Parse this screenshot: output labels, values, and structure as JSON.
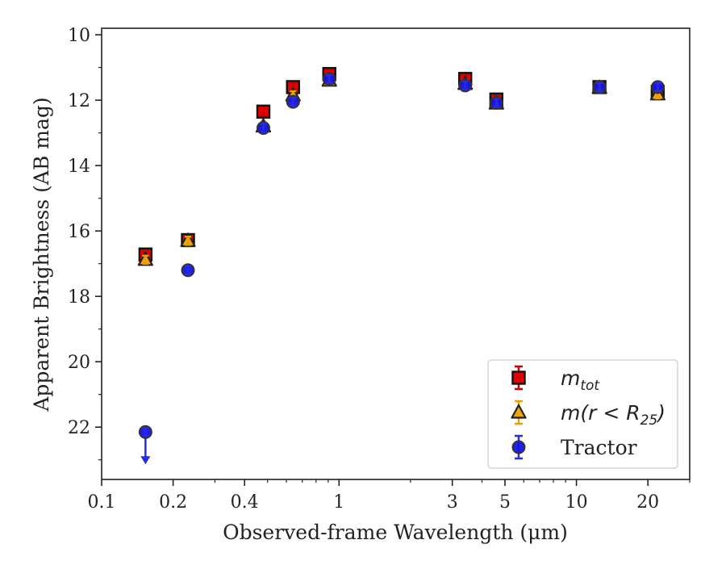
{
  "chart_data": {
    "type": "scatter",
    "title": "",
    "xlabel": "Observed-frame Wavelength (μm)",
    "ylabel": "Apparent Brightness (AB mag)",
    "x_scale": "log",
    "xlim": [
      0.1,
      30
    ],
    "ylim": [
      23.6,
      9.8
    ],
    "y_inverted": true,
    "x_ticks": [
      {
        "value": 0.1,
        "label": "0.1"
      },
      {
        "value": 0.2,
        "label": "0.2"
      },
      {
        "value": 0.4,
        "label": "0.4"
      },
      {
        "value": 1,
        "label": "1"
      },
      {
        "value": 3,
        "label": "3"
      },
      {
        "value": 5,
        "label": "5"
      },
      {
        "value": 10,
        "label": "10"
      },
      {
        "value": 20,
        "label": "20"
      }
    ],
    "y_ticks": [
      {
        "value": 10,
        "label": "10"
      },
      {
        "value": 12,
        "label": "12"
      },
      {
        "value": 14,
        "label": "14"
      },
      {
        "value": 16,
        "label": "16"
      },
      {
        "value": 18,
        "label": "18"
      },
      {
        "value": 20,
        "label": "20"
      },
      {
        "value": 22,
        "label": "22"
      }
    ],
    "grid": false,
    "legend_position": "lower-right",
    "series": [
      {
        "name": "m_tot",
        "label_base": "m",
        "label_sub": "tot",
        "marker": "square",
        "color": "#e60000",
        "errcolor": "#cc0000",
        "points": [
          {
            "x": 0.153,
            "y": 16.72
          },
          {
            "x": 0.231,
            "y": 16.28
          },
          {
            "x": 0.48,
            "y": 12.35
          },
          {
            "x": 0.64,
            "y": 11.6
          },
          {
            "x": 0.91,
            "y": 11.2
          },
          {
            "x": 3.4,
            "y": 11.35
          },
          {
            "x": 4.6,
            "y": 11.98
          },
          {
            "x": 12.5,
            "y": 11.6
          },
          {
            "x": 22.0,
            "y": 11.75
          }
        ]
      },
      {
        "name": "m(r < R25)",
        "label_base": "m(r < R",
        "label_sub": "25",
        "label_end": ")",
        "marker": "triangle",
        "color": "#f2a30f",
        "errcolor": "#e8a000",
        "points": [
          {
            "x": 0.153,
            "y": 16.88
          },
          {
            "x": 0.231,
            "y": 16.3
          },
          {
            "x": 0.48,
            "y": 12.8
          },
          {
            "x": 0.64,
            "y": 11.85
          },
          {
            "x": 0.91,
            "y": 11.4
          },
          {
            "x": 3.4,
            "y": 11.5
          },
          {
            "x": 4.6,
            "y": 12.1
          },
          {
            "x": 12.5,
            "y": 11.62
          },
          {
            "x": 22.0,
            "y": 11.82
          }
        ]
      },
      {
        "name": "Tractor",
        "label_base": "Tractor",
        "marker": "circle",
        "color": "#1414e6",
        "errcolor": "#2a2ae0",
        "points": [
          {
            "x": 0.153,
            "y": 22.15,
            "upper_limit": true
          },
          {
            "x": 0.231,
            "y": 17.2
          },
          {
            "x": 0.48,
            "y": 12.85
          },
          {
            "x": 0.64,
            "y": 12.05
          },
          {
            "x": 0.91,
            "y": 11.35
          },
          {
            "x": 3.4,
            "y": 11.55
          },
          {
            "x": 4.6,
            "y": 12.08
          },
          {
            "x": 12.5,
            "y": 11.6
          },
          {
            "x": 22.0,
            "y": 11.6
          }
        ]
      }
    ]
  }
}
